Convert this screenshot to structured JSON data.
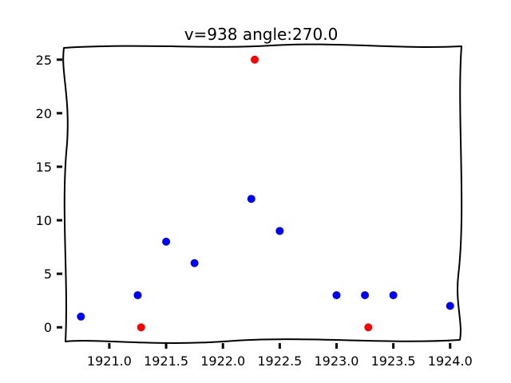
{
  "chart_data": {
    "type": "scatter",
    "title": "v=938 angle:270.0",
    "xlabel": "",
    "ylabel": "",
    "xlim": [
      1920.6,
      1924.1
    ],
    "ylim": [
      -1.25,
      26.25
    ],
    "x_ticks": [
      1921.0,
      1921.5,
      1922.0,
      1922.5,
      1923.0,
      1923.5,
      1924.0
    ],
    "x_tick_labels": [
      "1921.0",
      "1921.5",
      "1922.0",
      "1922.5",
      "1923.0",
      "1923.5",
      "1924.0"
    ],
    "y_ticks": [
      0,
      5,
      10,
      15,
      20,
      25
    ],
    "y_tick_labels": [
      "0",
      "5",
      "10",
      "15",
      "20",
      "25"
    ],
    "grid": false,
    "legend": "none",
    "series": [
      {
        "color": "#0000ff",
        "points": [
          {
            "x": 1920.75,
            "y": 1
          },
          {
            "x": 1921.25,
            "y": 3
          },
          {
            "x": 1921.5,
            "y": 8
          },
          {
            "x": 1921.75,
            "y": 6
          },
          {
            "x": 1922.25,
            "y": 12
          },
          {
            "x": 1922.5,
            "y": 9
          },
          {
            "x": 1923.0,
            "y": 3
          },
          {
            "x": 1923.25,
            "y": 3
          },
          {
            "x": 1923.5,
            "y": 3
          },
          {
            "x": 1924.0,
            "y": 2
          }
        ]
      },
      {
        "color": "#ff0000",
        "points": [
          {
            "x": 1921.28,
            "y": 0
          },
          {
            "x": 1922.28,
            "y": 25
          },
          {
            "x": 1923.28,
            "y": 0
          }
        ]
      }
    ]
  }
}
